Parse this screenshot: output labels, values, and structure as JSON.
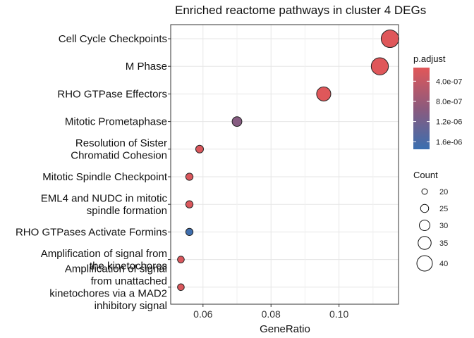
{
  "chart_data": {
    "type": "scatter",
    "title": "Enriched reactome pathways in cluster 4 DEGs",
    "xlabel": "GeneRatio",
    "ylabel": "",
    "xlim": [
      0.0505,
      0.1175
    ],
    "xticks": [
      0.06,
      0.08,
      0.1
    ],
    "xtick_labels": [
      "0.06",
      "0.08",
      "0.10"
    ],
    "grid": true,
    "points": [
      {
        "label_lines": [
          "Cell Cycle Checkpoints"
        ],
        "gene_ratio": 0.115,
        "count": 40,
        "p_adjust": 1.5e-07
      },
      {
        "label_lines": [
          "M Phase"
        ],
        "gene_ratio": 0.112,
        "count": 39,
        "p_adjust": 1.5e-07
      },
      {
        "label_lines": [
          "RHO GTPase Effectors"
        ],
        "gene_ratio": 0.0955,
        "count": 33,
        "p_adjust": 1.5e-07
      },
      {
        "label_lines": [
          "Mitotic Prometaphase"
        ],
        "gene_ratio": 0.07,
        "count": 24,
        "p_adjust": 1e-06
      },
      {
        "label_lines": [
          "Resolution of Sister",
          "Chromatid Cohesion"
        ],
        "gene_ratio": 0.059,
        "count": 20,
        "p_adjust": 2e-07
      },
      {
        "label_lines": [
          "Mitotic Spindle Checkpoint"
        ],
        "gene_ratio": 0.056,
        "count": 19,
        "p_adjust": 2e-07
      },
      {
        "label_lines": [
          "EML4 and NUDC in mitotic",
          "spindle formation"
        ],
        "gene_ratio": 0.056,
        "count": 19,
        "p_adjust": 2e-07
      },
      {
        "label_lines": [
          "RHO GTPases Activate Formins"
        ],
        "gene_ratio": 0.056,
        "count": 19,
        "p_adjust": 1.7e-06
      },
      {
        "label_lines": [
          "Amplification of signal from",
          "the kinetochores"
        ],
        "gene_ratio": 0.0535,
        "count": 18,
        "p_adjust": 2e-07
      },
      {
        "label_lines": [
          "Amplification  of signal",
          "from unattached",
          "kinetochores via a MAD2",
          "inhibitory signal"
        ],
        "gene_ratio": 0.0535,
        "count": 18,
        "p_adjust": 2e-07
      }
    ],
    "color_legend": {
      "title": "p.adjust",
      "ticks": [
        4e-07,
        8e-07,
        1.2e-06,
        1.6e-06
      ],
      "tick_labels": [
        "4.0e-07",
        "8.0e-07",
        "1.2e-06",
        "1.6e-06"
      ],
      "range": [
        1.3e-07,
        1.75e-06
      ],
      "low_color": "#e15759",
      "mid_color": "#8c5a7d",
      "high_color": "#3a6fb0"
    },
    "size_legend": {
      "title": "Count",
      "values": [
        20,
        25,
        30,
        35,
        40
      ],
      "labels": [
        "20",
        "25",
        "30",
        "35",
        "40"
      ]
    }
  }
}
